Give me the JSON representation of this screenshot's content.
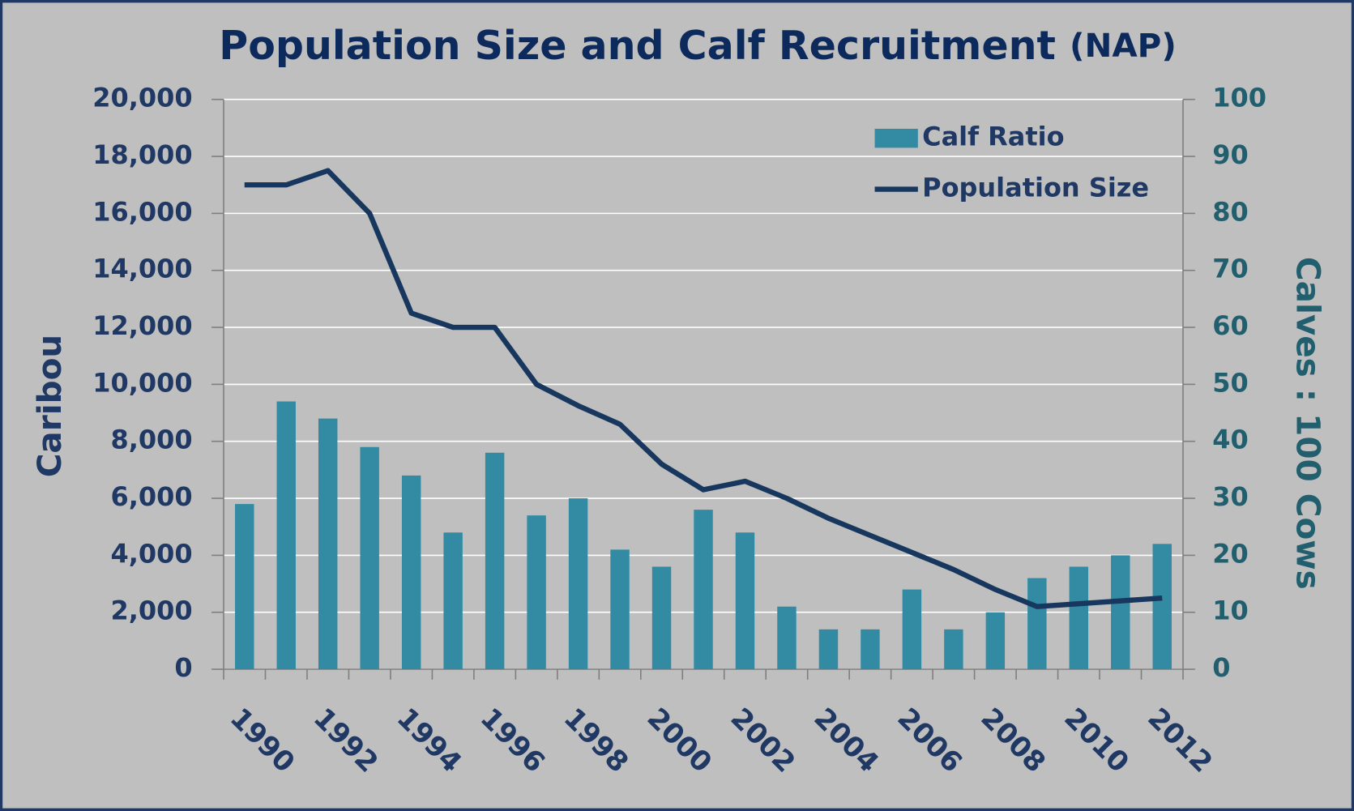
{
  "chart_data": {
    "type": "bar",
    "title": "Population Size and Calf Recruitment",
    "subtitle": "(NAP)",
    "y_label": "Caribou",
    "y2_label": "Calves : 100 Cows",
    "categories": [
      "1990",
      null,
      "1992",
      null,
      "1994",
      null,
      "1996",
      null,
      "1998",
      null,
      "2000",
      null,
      "2002",
      null,
      "2004",
      null,
      "2006",
      null,
      "2008",
      null,
      "2010",
      null,
      "2012"
    ],
    "series": [
      {
        "name": "Calf Ratio",
        "type": "bar",
        "axis": "y2",
        "color": "#338ba3",
        "values": [
          29,
          47,
          44,
          39,
          34,
          24,
          38,
          27,
          30,
          21,
          18,
          28,
          24,
          11,
          7,
          7,
          14,
          7,
          10,
          16,
          18,
          20,
          22
        ]
      },
      {
        "name": "Population Size",
        "type": "line",
        "axis": "y",
        "color": "#17375e",
        "values": [
          17000,
          17000,
          17500,
          16000,
          12500,
          12000,
          12000,
          10000,
          9250,
          8600,
          7200,
          6300,
          6600,
          6000,
          5300,
          4700,
          4100,
          3500,
          2800,
          2200,
          2300,
          2400,
          2500
        ]
      }
    ],
    "ylim": [
      0,
      20000
    ],
    "yticks": [
      0,
      {
        "value": 2000,
        "label": "2,000"
      },
      {
        "value": 4000,
        "label": "4,000"
      },
      {
        "value": 6000,
        "label": "6,000"
      },
      {
        "value": 8000,
        "label": "8,000"
      },
      {
        "value": 10000,
        "label": "10,000"
      },
      {
        "value": 12000,
        "label": "12,000"
      },
      {
        "value": 14000,
        "label": "14,000"
      },
      {
        "value": 16000,
        "label": "16,000"
      },
      {
        "value": 18000,
        "label": "18,000"
      },
      {
        "value": 20000,
        "label": "20,000"
      }
    ],
    "y2lim": [
      0,
      100
    ],
    "y2ticks": [
      0,
      10,
      20,
      30,
      40,
      50,
      60,
      70,
      80,
      90,
      100
    ],
    "grid": true,
    "legend": "upper right"
  }
}
